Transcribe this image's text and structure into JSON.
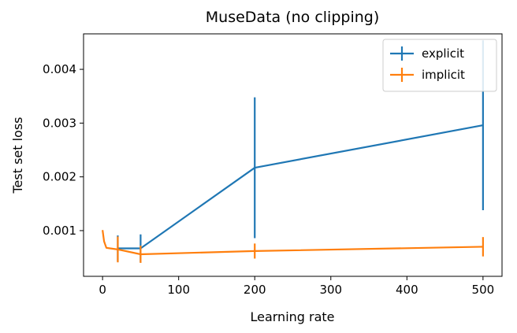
{
  "chart_data": {
    "type": "line",
    "title": "MuseData (no clipping)",
    "xlabel": "Learning rate",
    "ylabel": "Test set loss",
    "xlim": [
      -25,
      525
    ],
    "ylim": [
      0.00015,
      0.00466
    ],
    "xticks": [
      0,
      100,
      200,
      300,
      400,
      500
    ],
    "xtick_labels": [
      "0",
      "100",
      "200",
      "300",
      "400",
      "500"
    ],
    "yticks": [
      0.001,
      0.002,
      0.003,
      0.004
    ],
    "ytick_labels": [
      "0.001",
      "0.002",
      "0.003",
      "0.004"
    ],
    "grid": false,
    "legend": "top-right",
    "series": [
      {
        "name": "explicit",
        "color": "#1f77b4",
        "x": [
          20,
          50,
          200,
          500
        ],
        "y": [
          0.00067,
          0.00067,
          0.00217,
          0.00296
        ],
        "err": [
          0.00024,
          0.00026,
          0.00131,
          0.00158
        ]
      },
      {
        "name": "implicit",
        "color": "#ff7f0e",
        "x": [
          0,
          2,
          5,
          10,
          20,
          50,
          200,
          500
        ],
        "y": [
          0.00101,
          0.0008,
          0.00068,
          0.00067,
          0.00065,
          0.00056,
          0.00062,
          0.0007
        ],
        "err": [
          0,
          0,
          0,
          0,
          0.00024,
          0.00016,
          0.00014,
          0.00018
        ]
      }
    ]
  }
}
